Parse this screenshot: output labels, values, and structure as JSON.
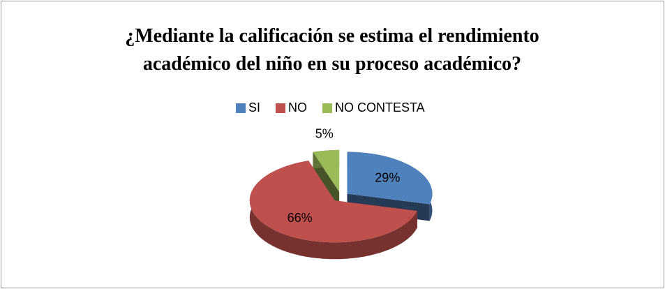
{
  "chart_data": {
    "type": "pie",
    "title": "¿Mediante la calificación se estima el rendimiento académico del niño en su proceso académico?",
    "categories": [
      "SI",
      "NO",
      "NO CONTESTA"
    ],
    "values": [
      29,
      66,
      5
    ],
    "value_labels": [
      "29%",
      "66%",
      "5%"
    ],
    "colors": [
      "#4f81bd",
      "#c0504d",
      "#9bbb59"
    ],
    "legend": "top"
  }
}
